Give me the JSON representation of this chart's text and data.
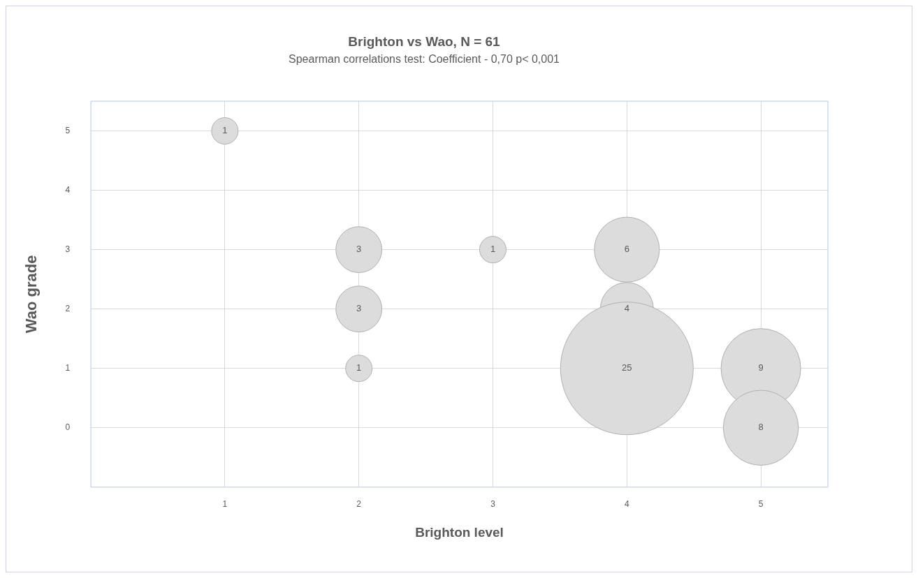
{
  "chart_data": {
    "type": "bubble",
    "title": "Brighton vs Wao, N = 61",
    "subtitle": "Spearman correlations test: Coefficient - 0,70 p< 0,001",
    "xlabel": "Brighton level",
    "ylabel": "Wao grade",
    "x": [
      1,
      2,
      2,
      2,
      3,
      4,
      4,
      4,
      5,
      5
    ],
    "values": [
      5,
      3,
      2,
      1,
      3,
      3,
      2,
      1,
      1,
      0
    ],
    "sizes": [
      0.04,
      0.12,
      0.12,
      0.04,
      0.04,
      0.24,
      0.16,
      1,
      0.36,
      0.32
    ],
    "annotations": [
      {
        "text": "1",
        "x": 1,
        "y": 5
      },
      {
        "text": "3",
        "x": 2,
        "y": 3
      },
      {
        "text": "3",
        "x": 2,
        "y": 2
      },
      {
        "text": "1",
        "x": 2,
        "y": 1
      },
      {
        "text": "1",
        "x": 3,
        "y": 3
      },
      {
        "text": "6",
        "x": 4,
        "y": 3
      },
      {
        "text": "4",
        "x": 4,
        "y": 2
      },
      {
        "text": "25",
        "x": 4,
        "y": 1
      },
      {
        "text": "9",
        "x": 5,
        "y": 1
      },
      {
        "text": "8",
        "x": 5,
        "y": 0
      }
    ],
    "color": "#dcdcdc",
    "xlim": [
      0,
      5.5
    ],
    "xticks": [
      1,
      2,
      3,
      4,
      5
    ],
    "ylim": [
      -1,
      5.5
    ],
    "yticks": [
      0,
      1,
      2,
      3,
      4,
      5
    ],
    "grid": true,
    "legend": false
  }
}
